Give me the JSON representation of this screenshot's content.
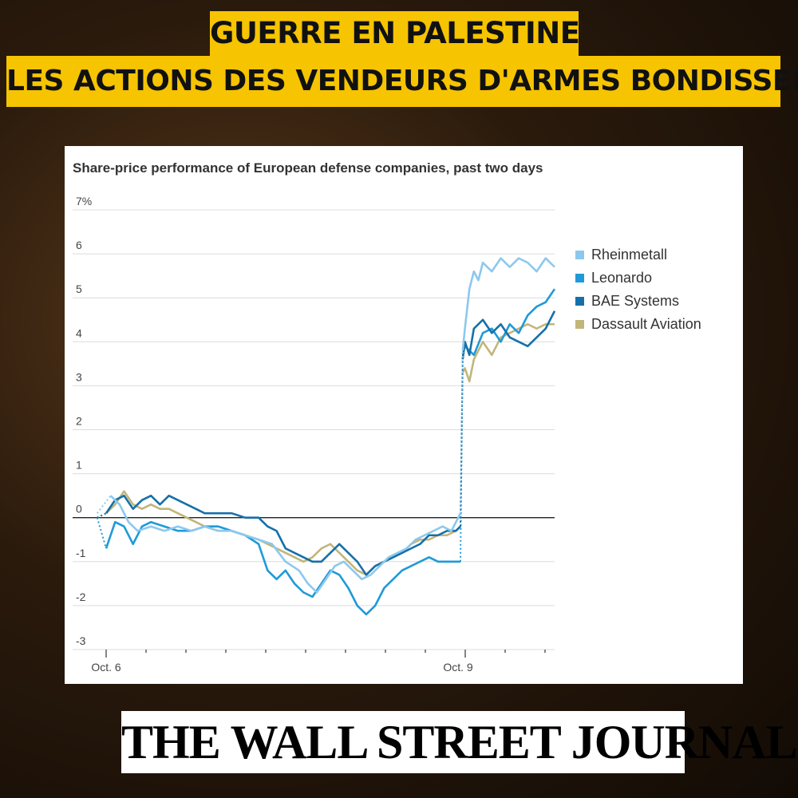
{
  "headline": {
    "line1": "GUERRE EN PALESTINE",
    "line2": "LES ACTIONS DES VENDEURS D'ARMES BONDISSENT"
  },
  "source_logo": "THE WALL STREET JOURNAL.",
  "colors": {
    "headline_bg": "#f6c400",
    "Rheinmetall": "#8cc8ee",
    "Leonardo": "#1f9ad8",
    "BAE Systems": "#1670a8",
    "Dassault Aviation": "#c2b57a"
  },
  "chart_data": {
    "type": "line",
    "title": "Share-price performance of European defense companies, past two days",
    "xlabel": "",
    "ylabel": "",
    "x_ticks": [
      "Oct. 6",
      "Oct. 9"
    ],
    "x_range": [
      0,
      100
    ],
    "ylim": [
      -3,
      7
    ],
    "yticks": [
      -3,
      -2,
      -1,
      0,
      1,
      2,
      3,
      4,
      5,
      6,
      7
    ],
    "ytick_labels": [
      "-3",
      "-2",
      "-1",
      "0",
      "1",
      "2",
      "3",
      "4",
      "5",
      "6",
      "7%"
    ],
    "legend_position": "right",
    "grid": true,
    "series": [
      {
        "name": "Rheinmetall",
        "points": [
          [
            -2,
            0.1
          ],
          [
            1,
            0.5
          ],
          [
            3,
            0.3
          ],
          [
            5,
            -0.1
          ],
          [
            7,
            -0.3
          ],
          [
            10,
            -0.2
          ],
          [
            13,
            -0.3
          ],
          [
            16,
            -0.2
          ],
          [
            19,
            -0.3
          ],
          [
            22,
            -0.2
          ],
          [
            25,
            -0.3
          ],
          [
            28,
            -0.3
          ],
          [
            31,
            -0.4
          ],
          [
            34,
            -0.5
          ],
          [
            37,
            -0.6
          ],
          [
            40,
            -1.0
          ],
          [
            43,
            -1.2
          ],
          [
            45,
            -1.5
          ],
          [
            47,
            -1.7
          ],
          [
            49,
            -1.4
          ],
          [
            51,
            -1.1
          ],
          [
            53,
            -1.0
          ],
          [
            55,
            -1.2
          ],
          [
            57,
            -1.4
          ],
          [
            59,
            -1.3
          ],
          [
            61,
            -1.1
          ],
          [
            63,
            -0.9
          ],
          [
            65,
            -0.8
          ],
          [
            67,
            -0.7
          ],
          [
            69,
            -0.5
          ],
          [
            71,
            -0.4
          ],
          [
            73,
            -0.3
          ],
          [
            75,
            -0.2
          ],
          [
            77,
            -0.3
          ],
          [
            79,
            0.1
          ],
          [
            79.5,
            3.8
          ],
          [
            80,
            4.3
          ],
          [
            81,
            5.2
          ],
          [
            82,
            5.6
          ],
          [
            83,
            5.4
          ],
          [
            84,
            5.8
          ],
          [
            86,
            5.6
          ],
          [
            88,
            5.9
          ],
          [
            90,
            5.7
          ],
          [
            92,
            5.9
          ],
          [
            94,
            5.8
          ],
          [
            96,
            5.6
          ],
          [
            98,
            5.9
          ],
          [
            100,
            5.7
          ]
        ]
      },
      {
        "name": "Leonardo",
        "points": [
          [
            -2,
            0.0
          ],
          [
            0,
            -0.7
          ],
          [
            2,
            -0.1
          ],
          [
            4,
            -0.2
          ],
          [
            6,
            -0.6
          ],
          [
            8,
            -0.2
          ],
          [
            10,
            -0.1
          ],
          [
            13,
            -0.2
          ],
          [
            16,
            -0.3
          ],
          [
            19,
            -0.3
          ],
          [
            22,
            -0.2
          ],
          [
            25,
            -0.2
          ],
          [
            28,
            -0.3
          ],
          [
            31,
            -0.4
          ],
          [
            34,
            -0.6
          ],
          [
            36,
            -1.2
          ],
          [
            38,
            -1.4
          ],
          [
            40,
            -1.2
          ],
          [
            42,
            -1.5
          ],
          [
            44,
            -1.7
          ],
          [
            46,
            -1.8
          ],
          [
            48,
            -1.5
          ],
          [
            50,
            -1.2
          ],
          [
            52,
            -1.3
          ],
          [
            54,
            -1.6
          ],
          [
            56,
            -2.0
          ],
          [
            58,
            -2.2
          ],
          [
            60,
            -2.0
          ],
          [
            62,
            -1.6
          ],
          [
            64,
            -1.4
          ],
          [
            66,
            -1.2
          ],
          [
            68,
            -1.1
          ],
          [
            70,
            -1.0
          ],
          [
            72,
            -0.9
          ],
          [
            74,
            -1.0
          ],
          [
            76,
            -1.0
          ],
          [
            78,
            -1.0
          ],
          [
            79,
            -1.0
          ],
          [
            79.5,
            3.7
          ],
          [
            80,
            3.9
          ],
          [
            82,
            3.7
          ],
          [
            84,
            4.2
          ],
          [
            86,
            4.3
          ],
          [
            88,
            4.0
          ],
          [
            90,
            4.4
          ],
          [
            92,
            4.2
          ],
          [
            94,
            4.6
          ],
          [
            96,
            4.8
          ],
          [
            98,
            4.9
          ],
          [
            100,
            5.2
          ]
        ]
      },
      {
        "name": "BAE Systems",
        "points": [
          [
            -2,
            0.0
          ],
          [
            0,
            0.1
          ],
          [
            2,
            0.4
          ],
          [
            4,
            0.5
          ],
          [
            6,
            0.2
          ],
          [
            8,
            0.4
          ],
          [
            10,
            0.5
          ],
          [
            12,
            0.3
          ],
          [
            14,
            0.5
          ],
          [
            16,
            0.4
          ],
          [
            18,
            0.3
          ],
          [
            20,
            0.2
          ],
          [
            22,
            0.1
          ],
          [
            25,
            0.1
          ],
          [
            28,
            0.1
          ],
          [
            31,
            0.0
          ],
          [
            34,
            0.0
          ],
          [
            36,
            -0.2
          ],
          [
            38,
            -0.3
          ],
          [
            40,
            -0.7
          ],
          [
            42,
            -0.8
          ],
          [
            44,
            -0.9
          ],
          [
            46,
            -1.0
          ],
          [
            48,
            -1.0
          ],
          [
            50,
            -0.8
          ],
          [
            52,
            -0.6
          ],
          [
            54,
            -0.8
          ],
          [
            56,
            -1.0
          ],
          [
            58,
            -1.3
          ],
          [
            60,
            -1.1
          ],
          [
            62,
            -1.0
          ],
          [
            64,
            -0.9
          ],
          [
            66,
            -0.8
          ],
          [
            68,
            -0.7
          ],
          [
            70,
            -0.6
          ],
          [
            72,
            -0.4
          ],
          [
            74,
            -0.4
          ],
          [
            76,
            -0.3
          ],
          [
            78,
            -0.3
          ],
          [
            79,
            -0.2
          ],
          [
            79.5,
            3.6
          ],
          [
            80,
            4.0
          ],
          [
            81,
            3.7
          ],
          [
            82,
            4.3
          ],
          [
            84,
            4.5
          ],
          [
            86,
            4.2
          ],
          [
            88,
            4.4
          ],
          [
            90,
            4.1
          ],
          [
            92,
            4.0
          ],
          [
            94,
            3.9
          ],
          [
            96,
            4.1
          ],
          [
            98,
            4.3
          ],
          [
            100,
            4.7
          ]
        ]
      },
      {
        "name": "Dassault Aviation",
        "points": [
          [
            -2,
            0.0
          ],
          [
            0,
            0.1
          ],
          [
            2,
            0.3
          ],
          [
            4,
            0.6
          ],
          [
            6,
            0.3
          ],
          [
            8,
            0.2
          ],
          [
            10,
            0.3
          ],
          [
            12,
            0.2
          ],
          [
            14,
            0.2
          ],
          [
            16,
            0.1
          ],
          [
            18,
            0.0
          ],
          [
            20,
            -0.1
          ],
          [
            22,
            -0.2
          ],
          [
            25,
            -0.3
          ],
          [
            28,
            -0.3
          ],
          [
            31,
            -0.4
          ],
          [
            34,
            -0.5
          ],
          [
            36,
            -0.6
          ],
          [
            38,
            -0.7
          ],
          [
            40,
            -0.8
          ],
          [
            42,
            -0.9
          ],
          [
            44,
            -1.0
          ],
          [
            46,
            -0.9
          ],
          [
            48,
            -0.7
          ],
          [
            50,
            -0.6
          ],
          [
            52,
            -0.8
          ],
          [
            54,
            -1.0
          ],
          [
            56,
            -1.2
          ],
          [
            58,
            -1.3
          ],
          [
            60,
            -1.1
          ],
          [
            62,
            -1.0
          ],
          [
            64,
            -0.9
          ],
          [
            66,
            -0.8
          ],
          [
            68,
            -0.6
          ],
          [
            70,
            -0.5
          ],
          [
            72,
            -0.5
          ],
          [
            74,
            -0.4
          ],
          [
            76,
            -0.4
          ],
          [
            78,
            -0.3
          ],
          [
            79,
            -0.2
          ],
          [
            79.5,
            3.3
          ],
          [
            80,
            3.4
          ],
          [
            81,
            3.1
          ],
          [
            82,
            3.6
          ],
          [
            84,
            4.0
          ],
          [
            86,
            3.7
          ],
          [
            88,
            4.1
          ],
          [
            90,
            4.2
          ],
          [
            92,
            4.3
          ],
          [
            94,
            4.4
          ],
          [
            96,
            4.3
          ],
          [
            98,
            4.4
          ],
          [
            100,
            4.4
          ]
        ]
      }
    ]
  }
}
